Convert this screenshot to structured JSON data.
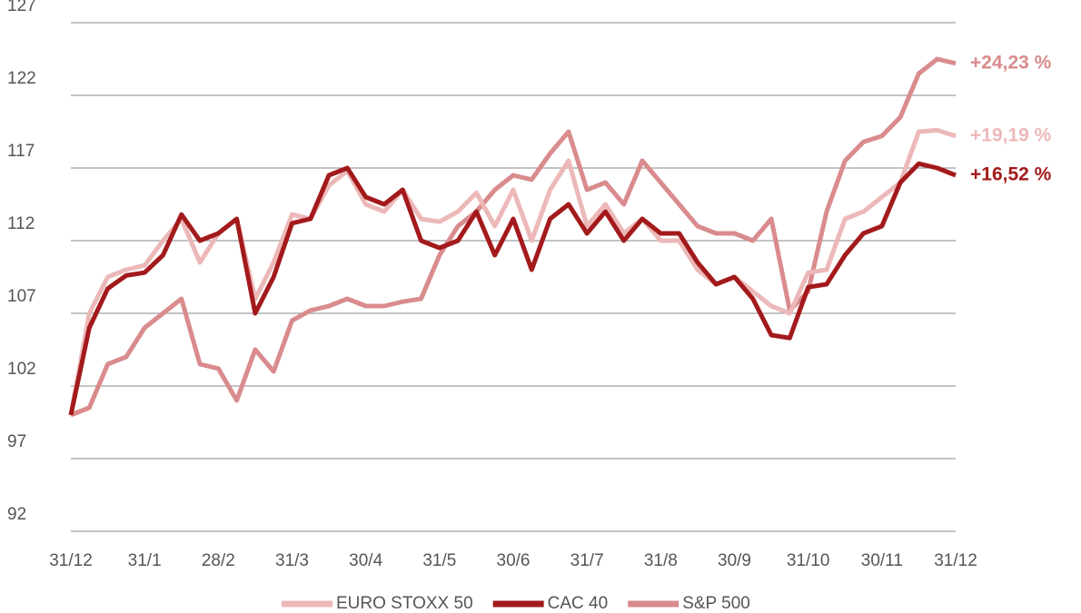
{
  "chart_data": {
    "type": "line",
    "categories": [
      "31/12",
      null,
      null,
      null,
      "31/1",
      null,
      null,
      null,
      "28/2",
      null,
      null,
      null,
      "31/3",
      null,
      null,
      null,
      "30/4",
      null,
      null,
      null,
      "31/5",
      null,
      null,
      null,
      "30/6",
      null,
      null,
      null,
      "31/7",
      null,
      null,
      null,
      "31/8",
      null,
      null,
      null,
      "30/9",
      null,
      null,
      null,
      "31/10",
      null,
      null,
      null,
      "30/11",
      null,
      null,
      null,
      "31/12"
    ],
    "series": [
      {
        "name": "EURO STOXX 50",
        "color": "#ecb8b8",
        "end_label": "+19,19 %",
        "values": [
          100,
          107,
          109.5,
          110,
          110.3,
          112,
          113.5,
          110.5,
          112.5,
          113.5,
          108,
          110.5,
          113.8,
          113.5,
          115.8,
          116.8,
          114.5,
          114,
          115.5,
          113.5,
          113.3,
          114,
          115.3,
          113,
          115.5,
          112,
          115.5,
          117.5,
          113,
          114.5,
          112.5,
          113.5,
          112,
          112,
          110,
          109,
          109.5,
          108.5,
          107.5,
          107,
          109.8,
          110,
          113.5,
          114,
          115,
          116,
          119.5,
          119.6,
          119.2
        ]
      },
      {
        "name": "CAC 40",
        "color": "#a31a1c",
        "end_label": "+16,52 %",
        "values": [
          100,
          106,
          108.7,
          109.6,
          109.8,
          111,
          113.8,
          112,
          112.5,
          113.5,
          107,
          109.5,
          113.2,
          113.5,
          116.5,
          117,
          115,
          114.5,
          115.5,
          112,
          111.5,
          112,
          114,
          111,
          113.5,
          110,
          113.5,
          114.5,
          112.5,
          114,
          112,
          113.5,
          112.5,
          112.5,
          110.5,
          109,
          109.5,
          108,
          105.5,
          105.3,
          108.8,
          109,
          111,
          112.5,
          113,
          116,
          117.3,
          117,
          116.5
        ]
      },
      {
        "name": "S&P 500",
        "color": "#d98b8d",
        "end_label": "+24,23 %",
        "values": [
          100,
          100.5,
          103.5,
          104,
          106,
          107,
          108,
          103.5,
          103.2,
          101,
          104.5,
          103,
          106.5,
          107.2,
          107.5,
          108,
          107.5,
          107.5,
          107.8,
          108,
          111,
          113,
          114,
          115.5,
          116.5,
          116.2,
          118,
          119.5,
          115.5,
          116,
          114.5,
          117.5,
          116,
          114.5,
          113,
          112.5,
          112.5,
          112,
          113.5,
          107.2,
          108.5,
          114,
          117.5,
          118.8,
          119.2,
          120.5,
          123.5,
          124.5,
          124.2
        ]
      }
    ],
    "ylim": [
      92,
      127
    ],
    "yticks": [
      92,
      97,
      102,
      107,
      112,
      117,
      122,
      127
    ],
    "grid": true,
    "legend": "bottom"
  }
}
